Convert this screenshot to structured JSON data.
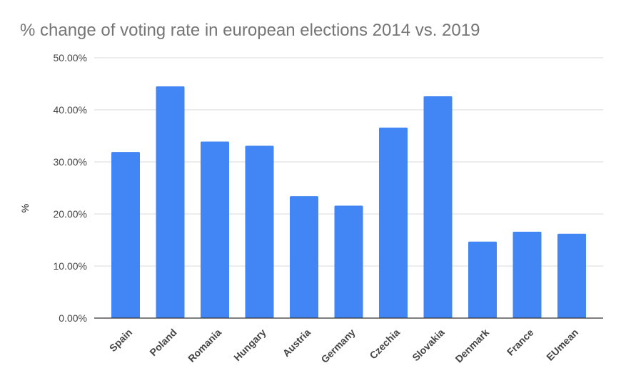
{
  "chart_data": {
    "type": "bar",
    "title": "% change of voting rate in european elections 2014 vs. 2019",
    "xlabel": "",
    "ylabel": "%",
    "categories": [
      "Spain",
      "Poland",
      "Romania",
      "Hungary",
      "Austria",
      "Germany",
      "Czechia",
      "Slovakia",
      "Denmark",
      "France",
      "EUmean"
    ],
    "values": [
      31.9,
      44.5,
      33.9,
      33.1,
      23.4,
      21.6,
      36.6,
      42.6,
      14.7,
      16.6,
      16.2
    ],
    "ylim": [
      0,
      50
    ],
    "yticks": [
      "0.00%",
      "10.00%",
      "20.00%",
      "30.00%",
      "40.00%",
      "50.00%"
    ],
    "grid": true,
    "legend": "none",
    "bar_color": "#4285f4"
  }
}
